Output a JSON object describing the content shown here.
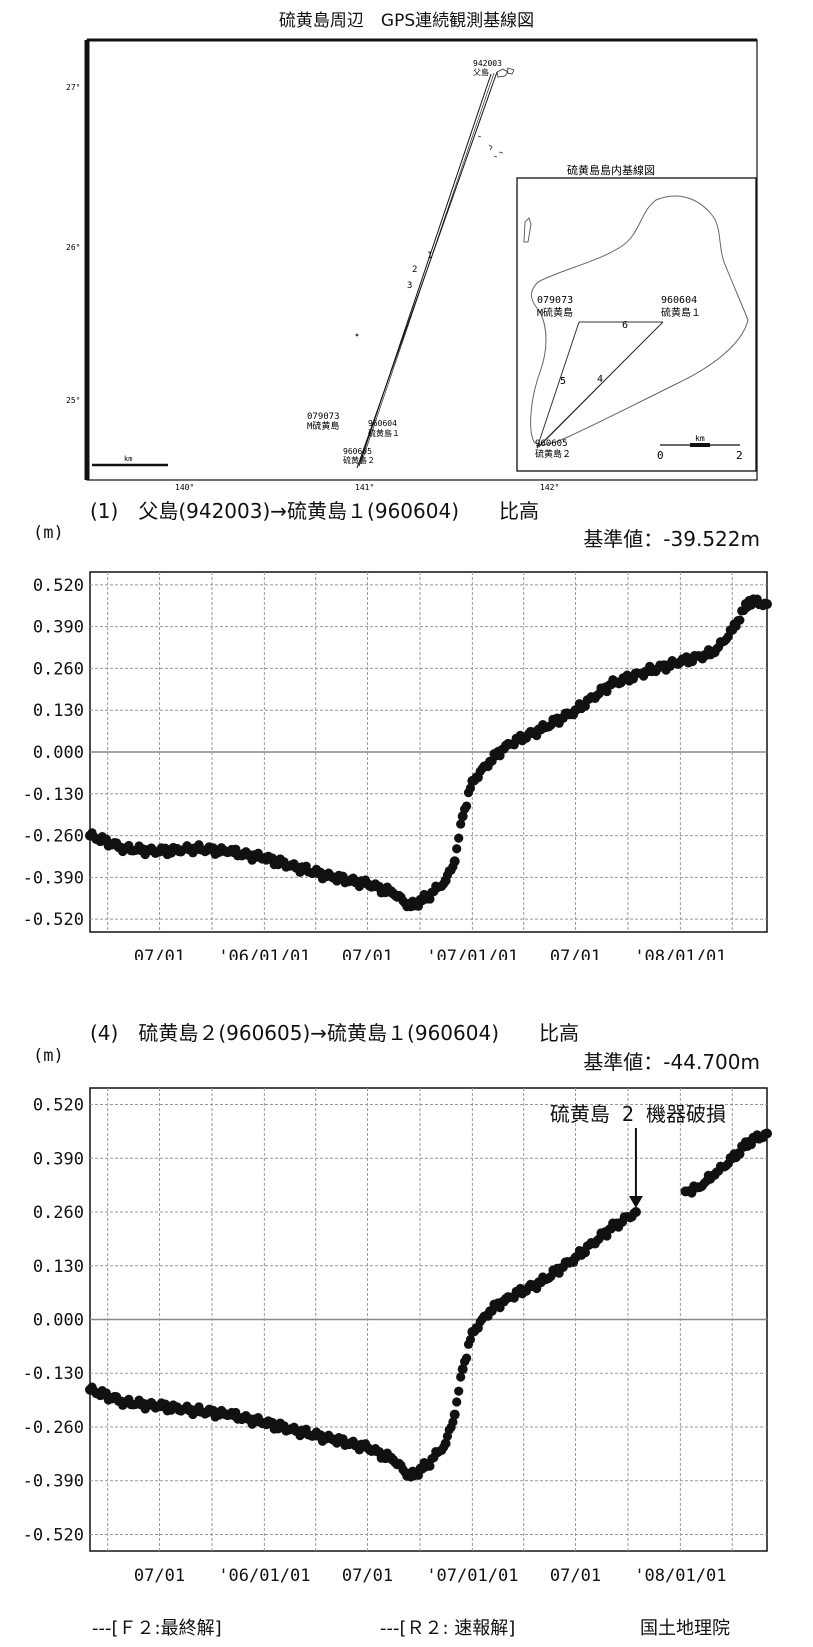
{
  "map": {
    "title": "硫黄島周辺　GPS連続観測基線図",
    "inset_title": "硫黄島島内基線図",
    "lat_labels": [
      "27°",
      "26°",
      "25°"
    ],
    "lon_labels": [
      "140°",
      "141°",
      "142°"
    ],
    "scale_label": "km",
    "inset_scale_label": "km",
    "inset_scale_ticks": [
      "0",
      "2"
    ],
    "stations": [
      {
        "id": "942003",
        "name": "父島"
      },
      {
        "id": "079073",
        "name": "M硫黄島"
      },
      {
        "id": "960604",
        "name": "硫黄島１"
      },
      {
        "id": "960605",
        "name": "硫黄島２"
      }
    ],
    "baseline_numbers": [
      "1",
      "2",
      "3"
    ],
    "inset_baseline_numbers": [
      "4",
      "5",
      "6"
    ]
  },
  "chart_data": [
    {
      "type": "scatter",
      "title": "(1)　父島(942003)→硫黄島１(960604)　　比高",
      "ylabel": "(m)",
      "baseline": "基準値：-39.522m",
      "x_tick_labels": [
        "07/01",
        "'06/01/01",
        "07/01",
        "'07/01/01",
        "07/01",
        "'08/01/01"
      ],
      "x_range": [
        "2005-03-01",
        "2008-06-01"
      ],
      "ylim": [
        -0.56,
        0.56
      ],
      "y_ticks": [
        0.52,
        0.39,
        0.26,
        0.13,
        0.0,
        -0.13,
        -0.26,
        -0.39,
        -0.52
      ],
      "y_tick_labels": [
        "0.520",
        "0.390",
        "0.260",
        "0.130",
        "0.000",
        "-0.130",
        "-0.260",
        "-0.390",
        "-0.520"
      ],
      "grid": true,
      "series": [
        {
          "x": [
            "2005-03-01",
            "2005-05-01",
            "2005-07-01",
            "2005-09-01",
            "2005-11-01",
            "2006-01-01",
            "2006-03-01",
            "2006-05-01",
            "2006-07-01",
            "2006-08-15",
            "2006-09-15",
            "2006-10-15",
            "2006-11-15",
            "2006-12-01",
            "2006-12-15",
            "2007-01-01",
            "2007-02-01",
            "2007-03-01",
            "2007-05-01",
            "2007-07-01",
            "2007-09-01",
            "2007-11-01",
            "2008-01-01",
            "2008-03-01",
            "2008-04-01",
            "2008-05-01",
            "2008-06-01"
          ],
          "y": [
            -0.26,
            -0.3,
            -0.31,
            -0.3,
            -0.31,
            -0.33,
            -0.36,
            -0.39,
            -0.41,
            -0.44,
            -0.48,
            -0.45,
            -0.4,
            -0.34,
            -0.2,
            -0.09,
            -0.03,
            0.02,
            0.07,
            0.13,
            0.21,
            0.25,
            0.28,
            0.31,
            0.38,
            0.47,
            0.46
          ]
        }
      ]
    },
    {
      "type": "scatter",
      "title": "(4)　硫黄島２(960605)→硫黄島１(960604)　　比高",
      "ylabel": "(m)",
      "baseline": "基準値：-44.700m",
      "annotation": "硫黄島 2 機器破損",
      "x_tick_labels": [
        "07/01",
        "'06/01/01",
        "07/01",
        "'07/01/01",
        "07/01",
        "'08/01/01"
      ],
      "x_range": [
        "2005-03-01",
        "2008-06-01"
      ],
      "ylim": [
        -0.56,
        0.56
      ],
      "y_ticks": [
        0.52,
        0.39,
        0.26,
        0.13,
        0.0,
        -0.13,
        -0.26,
        -0.39,
        -0.52
      ],
      "y_tick_labels": [
        "0.520",
        "0.390",
        "0.260",
        "0.130",
        "0.000",
        "-0.130",
        "-0.260",
        "-0.390",
        "-0.520"
      ],
      "grid": true,
      "series": [
        {
          "x": [
            "2005-03-01",
            "2005-05-01",
            "2005-07-01",
            "2005-09-01",
            "2005-11-01",
            "2006-01-01",
            "2006-03-01",
            "2006-05-01",
            "2006-07-01",
            "2006-08-15",
            "2006-09-15",
            "2006-10-15",
            "2006-11-15",
            "2006-12-01",
            "2006-12-15",
            "2007-01-01",
            "2007-02-01",
            "2007-03-01",
            "2007-05-01",
            "2007-07-01",
            "2007-09-01",
            "2007-10-15"
          ],
          "y": [
            -0.17,
            -0.2,
            -0.21,
            -0.22,
            -0.23,
            -0.25,
            -0.27,
            -0.29,
            -0.31,
            -0.34,
            -0.38,
            -0.35,
            -0.3,
            -0.23,
            -0.12,
            -0.03,
            0.02,
            0.05,
            0.09,
            0.15,
            0.22,
            0.26
          ]
        },
        {
          "x": [
            "2008-01-10",
            "2008-02-01",
            "2008-03-01",
            "2008-04-01",
            "2008-05-01",
            "2008-06-01"
          ],
          "y": [
            0.31,
            0.32,
            0.35,
            0.39,
            0.43,
            0.45
          ]
        }
      ]
    }
  ],
  "footer": {
    "f2_label": "---[Ｆ２:最終解]",
    "r2_label": "---[Ｒ２: 速報解]",
    "org": "国土地理院"
  }
}
